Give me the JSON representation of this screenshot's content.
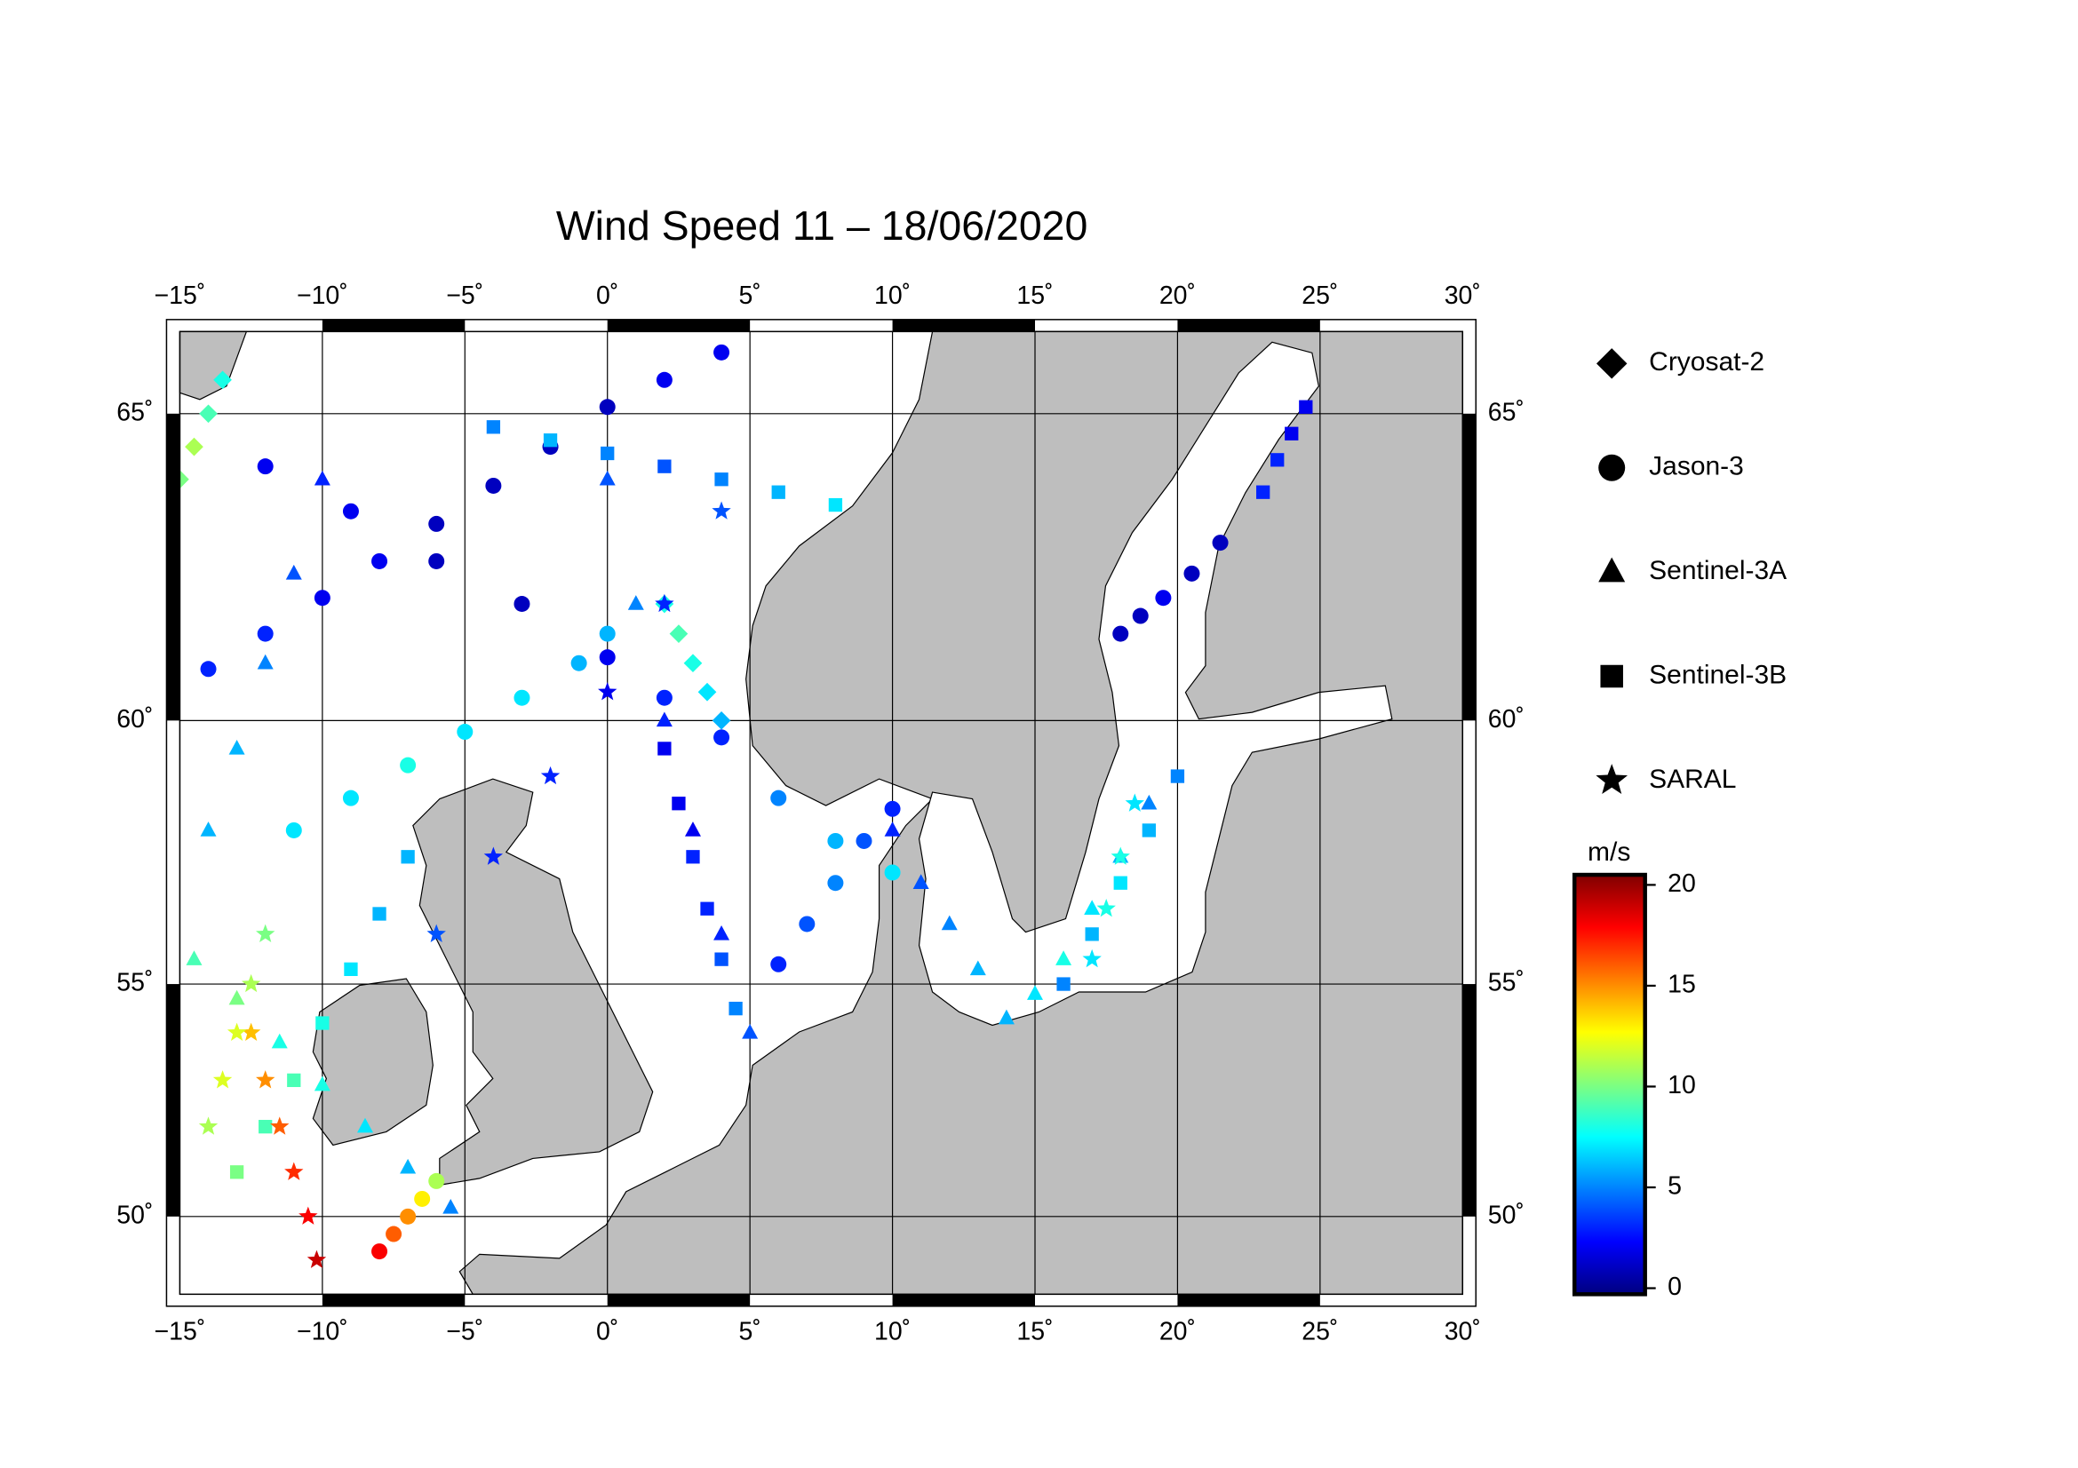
{
  "chart_data": {
    "type": "map",
    "title": "Wind Speed 11 – 18/06/2020",
    "xlim": [
      -15,
      30
    ],
    "ylim": [
      48.2,
      66.2
    ],
    "xticks": [
      {
        "value": -15,
        "label": "−15˚"
      },
      {
        "value": -10,
        "label": "−10˚"
      },
      {
        "value": -5,
        "label": "−5˚"
      },
      {
        "value": 0,
        "label": "0˚"
      },
      {
        "value": 5,
        "label": "5˚"
      },
      {
        "value": 10,
        "label": "10˚"
      },
      {
        "value": 15,
        "label": "15˚"
      },
      {
        "value": 20,
        "label": "20˚"
      },
      {
        "value": 25,
        "label": "25˚"
      },
      {
        "value": 30,
        "label": "30˚"
      }
    ],
    "yticks": [
      {
        "value": 50,
        "label": "50˚"
      },
      {
        "value": 55,
        "label": "55˚"
      },
      {
        "value": 60,
        "label": "60˚"
      },
      {
        "value": 65,
        "label": "65˚"
      }
    ],
    "grid": true,
    "colorbar": {
      "label": "m/s",
      "clim": [
        -0.3,
        20.5
      ],
      "ticks": [
        0,
        5,
        10,
        15,
        20
      ],
      "colormap": [
        "#00007f",
        "#0000ff",
        "#007fff",
        "#00ffff",
        "#7fff7f",
        "#ffff00",
        "#ff7f00",
        "#ff0000",
        "#7f0000"
      ]
    },
    "series": [
      {
        "name": "Cryosat-2",
        "marker": "diamond",
        "tracks": [
          {
            "lon": [
              -15,
              -14.5,
              -14,
              -13.5
            ],
            "lat": [
              64,
              64.5,
              65,
              65.5
            ],
            "speed": [
              10,
              11,
              9,
              8
            ]
          },
          {
            "lon": [
              2,
              2.5,
              3,
              3.5,
              4
            ],
            "lat": [
              62,
              61.5,
              61,
              60.5,
              60
            ],
            "speed": [
              8,
              9,
              8,
              7,
              6
            ]
          }
        ]
      },
      {
        "name": "Jason-3",
        "marker": "circle",
        "tracks": [
          {
            "lon": [
              -14,
              -12,
              -10,
              -8,
              -6,
              -4,
              -2,
              0,
              2,
              4
            ],
            "lat": [
              60.9,
              61.5,
              62.1,
              62.7,
              63.3,
              63.9,
              64.5,
              65.1,
              65.5,
              65.9
            ],
            "speed": [
              3,
              3,
              2,
              2,
              1,
              1,
              1,
              1,
              2,
              2
            ]
          },
          {
            "lon": [
              -12,
              -9,
              -6,
              -3,
              0,
              2,
              4,
              6,
              8,
              10
            ],
            "lat": [
              64.2,
              63.5,
              62.7,
              62,
              61.1,
              60.4,
              59.7,
              58.6,
              57.8,
              57.2
            ],
            "speed": [
              2,
              2,
              1,
              1,
              2,
              3,
              3,
              5,
              6,
              7
            ]
          },
          {
            "lon": [
              10,
              9,
              8,
              7,
              6
            ],
            "lat": [
              58.4,
              57.8,
              57,
              56.2,
              55.4
            ],
            "speed": [
              3,
              4,
              5,
              4,
              3
            ]
          },
          {
            "lon": [
              -11,
              -9,
              -7,
              -5,
              -3,
              -1,
              0
            ],
            "lat": [
              58,
              58.6,
              59.2,
              59.8,
              60.4,
              61,
              61.5
            ],
            "speed": [
              7,
              7,
              8,
              7,
              7,
              6,
              6
            ]
          },
          {
            "lon": [
              18,
              18.7,
              19.5,
              20.5,
              21.5
            ],
            "lat": [
              61.5,
              61.8,
              62.1,
              62.5,
              63
            ],
            "speed": [
              1,
              1,
              2,
              1,
              1
            ]
          },
          {
            "lon": [
              -8,
              -7.5,
              -7,
              -6.5,
              -6
            ],
            "lat": [
              49.2,
              49.6,
              50,
              50.4,
              50.8
            ],
            "speed": [
              18,
              16,
              15,
              13,
              11
            ]
          }
        ]
      },
      {
        "name": "Sentinel-3A",
        "marker": "triangle",
        "tracks": [
          {
            "lon": [
              -14.5,
              -13,
              -11.5,
              -10,
              -8.5,
              -7,
              -5.5
            ],
            "lat": [
              55.5,
              54.7,
              53.8,
              52.9,
              52,
              51.1,
              50.2
            ],
            "speed": [
              9,
              10,
              8,
              8,
              7,
              6,
              5
            ]
          },
          {
            "lon": [
              0,
              1,
              2,
              3,
              4,
              5
            ],
            "lat": [
              64,
              62,
              60,
              58,
              56,
              54
            ],
            "speed": [
              4,
              5,
              3,
              2,
              3,
              4
            ]
          },
          {
            "lon": [
              14,
              15,
              16,
              17,
              18,
              19
            ],
            "lat": [
              54.3,
              54.8,
              55.5,
              56.5,
              57.5,
              58.5
            ],
            "speed": [
              6,
              7,
              8,
              7,
              6,
              5
            ]
          },
          {
            "lon": [
              10,
              11,
              12,
              13
            ],
            "lat": [
              58,
              57,
              56.2,
              55.3
            ],
            "speed": [
              3,
              4,
              5,
              6
            ]
          },
          {
            "lon": [
              -14,
              -13,
              -12,
              -11,
              -10
            ],
            "lat": [
              58,
              59.5,
              61,
              62.5,
              64
            ],
            "speed": [
              6,
              6,
              5,
              4,
              3
            ]
          }
        ]
      },
      {
        "name": "Sentinel-3B",
        "marker": "square",
        "tracks": [
          {
            "lon": [
              -13,
              -12,
              -11,
              -10,
              -9,
              -8,
              -7
            ],
            "lat": [
              51,
              52,
              53,
              54.2,
              55.3,
              56.4,
              57.5
            ],
            "speed": [
              10,
              9,
              9,
              8,
              7,
              6,
              6
            ]
          },
          {
            "lon": [
              2,
              2.5,
              3,
              3.5,
              4,
              4.5
            ],
            "lat": [
              59.5,
              58.5,
              57.5,
              56.5,
              55.5,
              54.5
            ],
            "speed": [
              2,
              2,
              3,
              3,
              4,
              5
            ]
          },
          {
            "lon": [
              23,
              23.5,
              24,
              24.5
            ],
            "lat": [
              63.8,
              64.3,
              64.7,
              65.1
            ],
            "speed": [
              3,
              3,
              2,
              2
            ]
          },
          {
            "lon": [
              16,
              17,
              18,
              19,
              20
            ],
            "lat": [
              55,
              56,
              57,
              58,
              59
            ],
            "speed": [
              5,
              6,
              7,
              6,
              5
            ]
          },
          {
            "lon": [
              -4,
              -2,
              0,
              2,
              4,
              6,
              8
            ],
            "lat": [
              64.8,
              64.6,
              64.4,
              64.2,
              64,
              63.8,
              63.6
            ],
            "speed": [
              5,
              6,
              5,
              4,
              5,
              6,
              7
            ]
          }
        ]
      },
      {
        "name": "SARAL",
        "marker": "star",
        "tracks": [
          {
            "lon": [
              -12.5,
              -12,
              -11.5,
              -11,
              -10.5,
              -10.2
            ],
            "lat": [
              54,
              53,
              52,
              51,
              50,
              49
            ],
            "speed": [
              14,
              15,
              16,
              17,
              18,
              19
            ]
          },
          {
            "lon": [
              -6,
              -4,
              -2,
              0,
              2,
              4
            ],
            "lat": [
              56,
              57.5,
              59,
              60.5,
              62,
              63.5
            ],
            "speed": [
              4,
              3,
              3,
              2,
              3,
              4
            ]
          },
          {
            "lon": [
              -14,
              -13.5,
              -13,
              -12.5,
              -12
            ],
            "lat": [
              52,
              53,
              54,
              55,
              56
            ],
            "speed": [
              11,
              12,
              12,
              11,
              10
            ]
          },
          {
            "lon": [
              17,
              17.5,
              18,
              18.5
            ],
            "lat": [
              55.5,
              56.5,
              57.5,
              58.5
            ],
            "speed": [
              7,
              8,
              8,
              7
            ]
          }
        ]
      }
    ]
  }
}
